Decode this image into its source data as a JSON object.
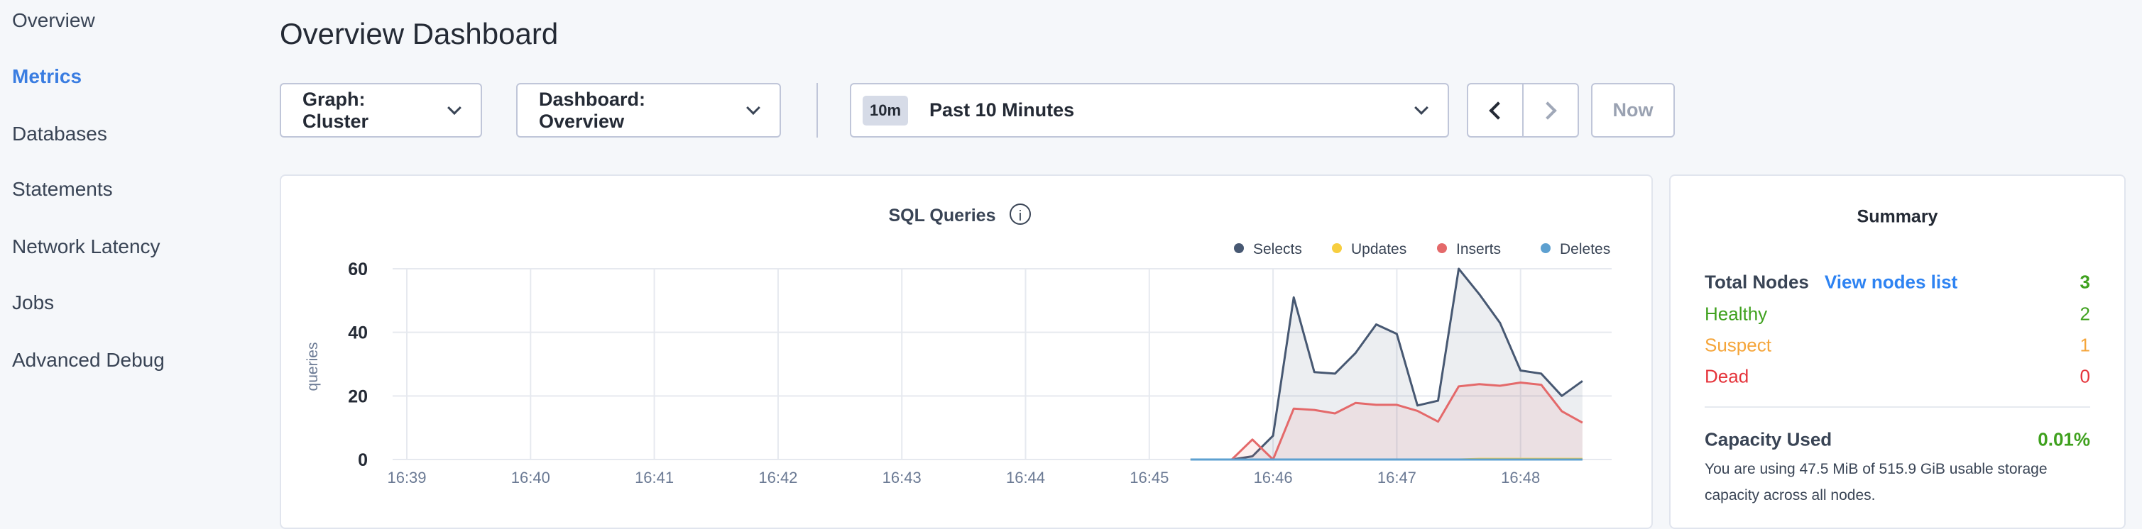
{
  "sidebar": {
    "items": [
      {
        "label": "Overview"
      },
      {
        "label": "Metrics",
        "active": true
      },
      {
        "label": "Databases"
      },
      {
        "label": "Statements"
      },
      {
        "label": "Network Latency"
      },
      {
        "label": "Jobs"
      },
      {
        "label": "Advanced Debug"
      }
    ]
  },
  "header": {
    "title": "Overview Dashboard"
  },
  "toolbar": {
    "graph": "Graph: Cluster",
    "dashboard": "Dashboard: Overview",
    "time_badge": "10m",
    "time_range": "Past 10 Minutes",
    "now": "Now"
  },
  "summary": {
    "title": "Summary",
    "total_label": "Total Nodes",
    "view_link": "View nodes list",
    "total": "3",
    "healthy_label": "Healthy",
    "healthy": "2",
    "suspect_label": "Suspect",
    "suspect": "1",
    "dead_label": "Dead",
    "dead": "0",
    "capacity_label": "Capacity Used",
    "capacity": "0.01%",
    "capacity_desc": "You are using 47.5 MiB of 515.9 GiB usable storage capacity across all nodes.",
    "colors": {
      "healthy": "#3fa11e",
      "suspect": "#f5a53a",
      "dead": "#e5333a",
      "link": "#2e83f2"
    }
  },
  "chart_data": {
    "type": "area",
    "title": "SQL Queries",
    "ylabel": "queries",
    "ylim": [
      0,
      60
    ],
    "yticks": [
      0,
      20,
      40,
      60
    ],
    "xticks": [
      "16:39",
      "16:40",
      "16:41",
      "16:42",
      "16:43",
      "16:44",
      "16:45",
      "16:46",
      "16:47",
      "16:48"
    ],
    "x": [
      "16:45:20",
      "16:45:30",
      "16:45:40",
      "16:45:50",
      "16:46:00",
      "16:46:10",
      "16:46:20",
      "16:46:30",
      "16:46:40",
      "16:46:50",
      "16:47:00",
      "16:47:10",
      "16:47:20",
      "16:47:30",
      "16:47:40",
      "16:47:50",
      "16:48:00",
      "16:48:10",
      "16:48:20",
      "16:48:30"
    ],
    "legend_position": "top-right",
    "grid": true,
    "series": [
      {
        "name": "Selects",
        "color": "#475872",
        "values": [
          0,
          0,
          0,
          1,
          7.5,
          51,
          27.5,
          27,
          33.5,
          42.5,
          39.5,
          17,
          18.5,
          60,
          52,
          43,
          28,
          27,
          20,
          24.7
        ]
      },
      {
        "name": "Updates",
        "color": "#f7ce3f",
        "values": [
          0,
          0,
          0,
          0,
          0,
          0,
          0,
          0,
          0,
          0,
          0,
          0,
          0,
          0,
          0.2,
          0.2,
          0.2,
          0.2,
          0.2,
          0.2
        ]
      },
      {
        "name": "Inserts",
        "color": "#e4696a",
        "values": [
          0,
          0,
          0,
          6.3,
          0,
          16,
          15.6,
          14.5,
          17.8,
          17.2,
          17.2,
          15.3,
          11.9,
          23,
          23.7,
          23.2,
          24.2,
          23.5,
          15.2,
          11.6
        ]
      },
      {
        "name": "Deletes",
        "color": "#5da0d0",
        "values": [
          0,
          0,
          0,
          0,
          0,
          0,
          0,
          0,
          0,
          0,
          0,
          0,
          0,
          0,
          0,
          0,
          0,
          0,
          0,
          0
        ]
      }
    ]
  }
}
